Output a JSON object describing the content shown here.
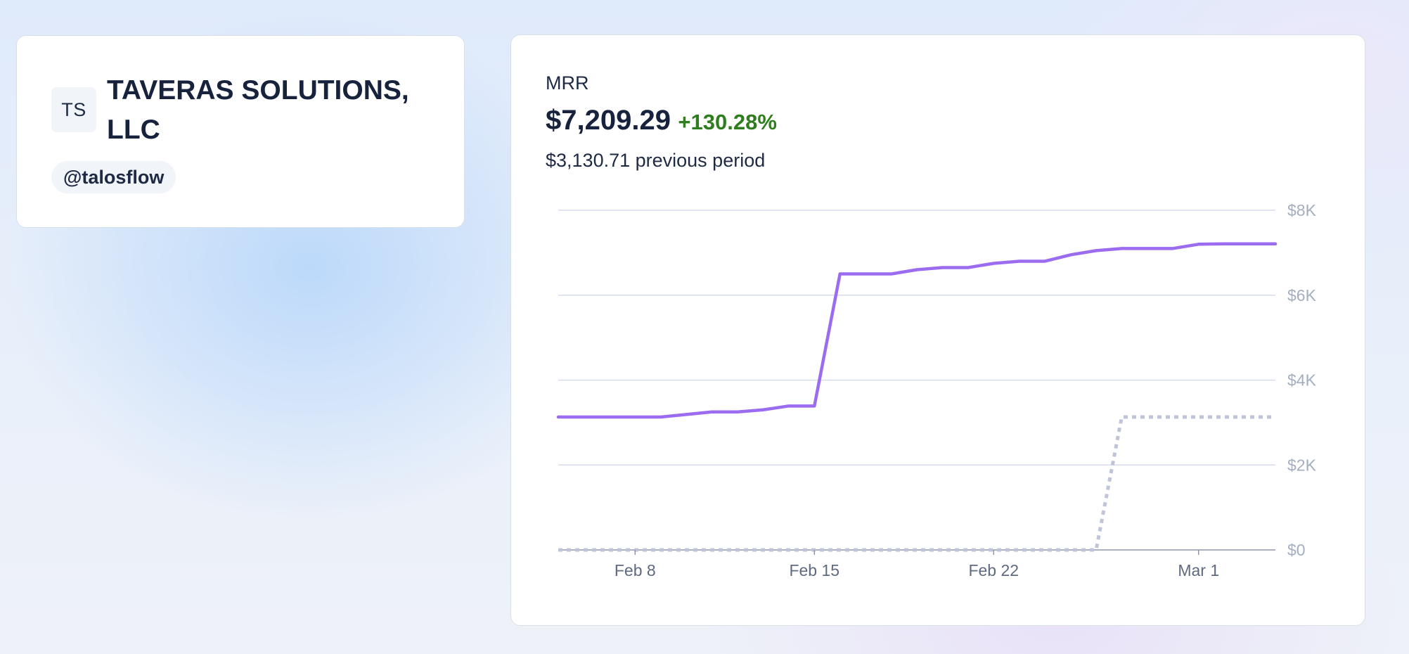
{
  "profile": {
    "avatar_initials": "TS",
    "company_name": "TAVERAS SOLUTIONS, LLC",
    "handle": "@talosflow"
  },
  "metric": {
    "label": "MRR",
    "value": "$7,209.29",
    "change": "+130.28%",
    "previous": "$3,130.71 previous period",
    "colors": {
      "current": "#9b6cf0",
      "previous": "#c0c4d8",
      "positive": "#2f7d1f"
    }
  },
  "chart_data": {
    "type": "line",
    "x": [
      "2024-02-05",
      "2024-02-06",
      "2024-02-07",
      "2024-02-08",
      "2024-02-09",
      "2024-02-10",
      "2024-02-11",
      "2024-02-12",
      "2024-02-13",
      "2024-02-14",
      "2024-02-15",
      "2024-02-16",
      "2024-02-17",
      "2024-02-18",
      "2024-02-19",
      "2024-02-20",
      "2024-02-21",
      "2024-02-22",
      "2024-02-23",
      "2024-02-24",
      "2024-02-25",
      "2024-02-26",
      "2024-02-27",
      "2024-02-28",
      "2024-02-29",
      "2024-03-01",
      "2024-03-02",
      "2024-03-03",
      "2024-03-04"
    ],
    "series": [
      {
        "style": "solid",
        "color": "#9b6cf0",
        "values": [
          3130,
          3130,
          3130,
          3130,
          3130,
          3190,
          3250,
          3250,
          3300,
          3390,
          3390,
          6500,
          6500,
          6500,
          6600,
          6650,
          6650,
          6750,
          6800,
          6800,
          6950,
          7050,
          7100,
          7100,
          7100,
          7200,
          7209,
          7209,
          7209
        ]
      },
      {
        "style": "dotted",
        "color": "#c0c4d8",
        "values": [
          0,
          0,
          0,
          0,
          0,
          0,
          0,
          0,
          0,
          0,
          0,
          0,
          0,
          0,
          0,
          0,
          0,
          0,
          0,
          0,
          0,
          0,
          3130,
          3130,
          3130,
          3130,
          3130,
          3130,
          3130
        ]
      }
    ],
    "xticks": [
      {
        "x": "2024-02-08",
        "label": "Feb 8"
      },
      {
        "x": "2024-02-15",
        "label": "Feb 15"
      },
      {
        "x": "2024-02-22",
        "label": "Feb 22"
      },
      {
        "x": "2024-03-01",
        "label": "Mar 1"
      }
    ],
    "yticks": [
      {
        "value": 0,
        "label": "$0"
      },
      {
        "value": 2000,
        "label": "$2K"
      },
      {
        "value": 4000,
        "label": "$4K"
      },
      {
        "value": 6000,
        "label": "$6K"
      },
      {
        "value": 8000,
        "label": "$8K"
      }
    ],
    "ylim": [
      0,
      8000
    ],
    "xlim": [
      "2024-02-05",
      "2024-03-04"
    ],
    "grid": true,
    "y_axis_side": "right",
    "title": "MRR"
  }
}
